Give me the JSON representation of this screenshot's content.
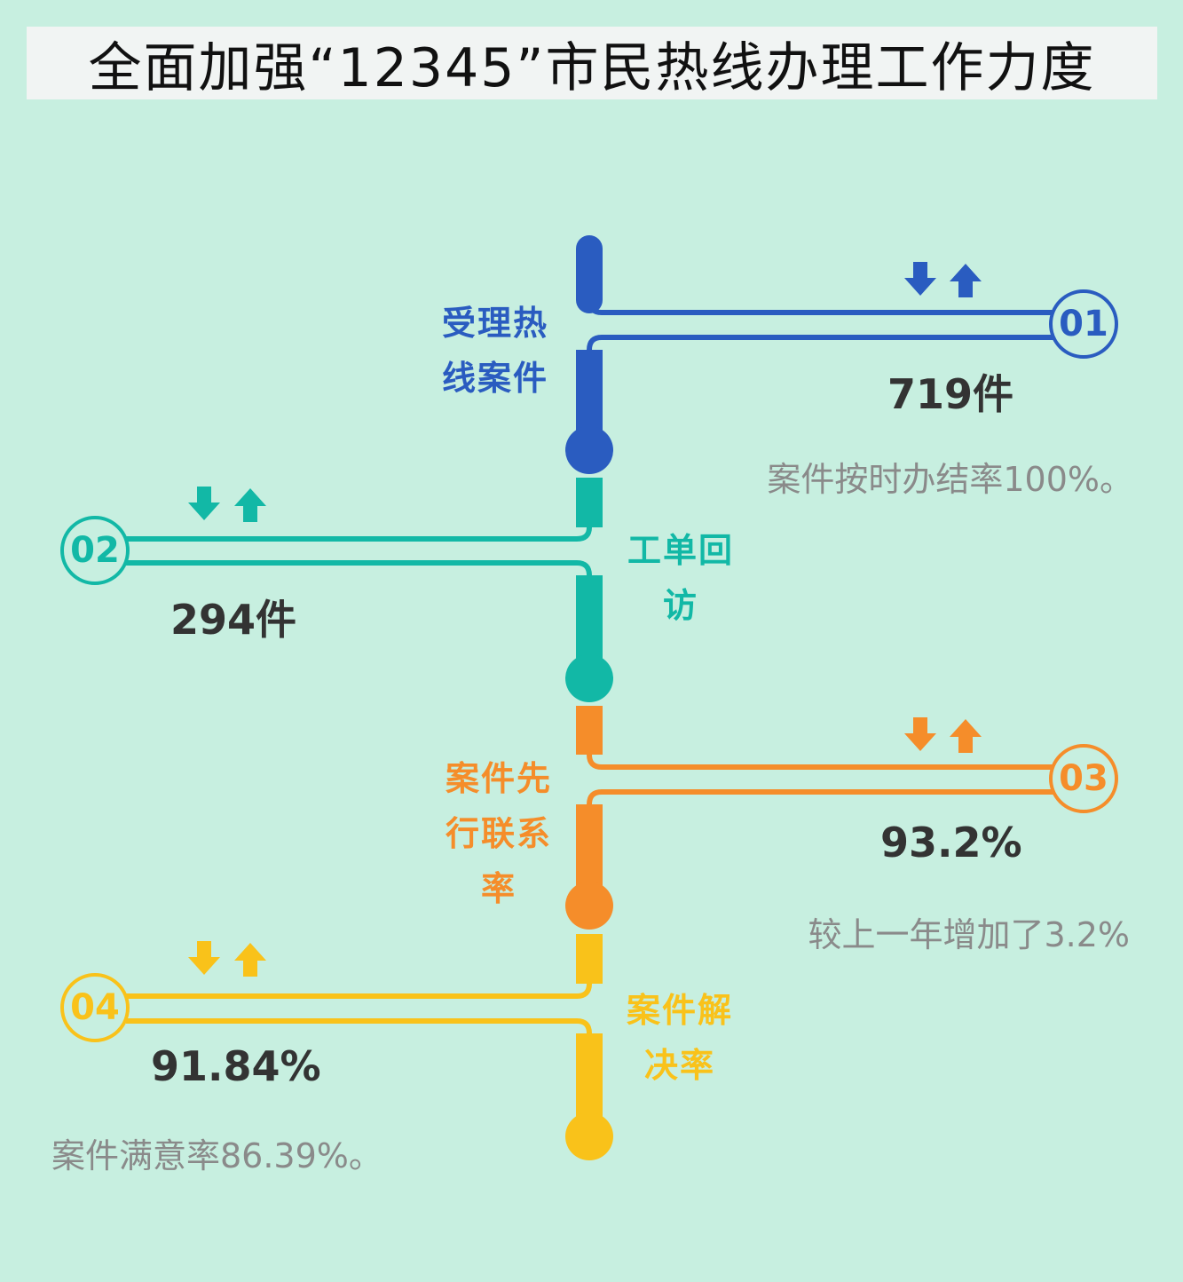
{
  "title": "全面加强“12345”市民热线办理工作力度",
  "colors": {
    "blue": "#2a5cc0",
    "teal": "#12b8a6",
    "orange": "#f58d2a",
    "yellow": "#f9c21a",
    "background": "#c7efe0",
    "value_text": "#333333",
    "note_text": "#8a8a8a"
  },
  "items": [
    {
      "number": "01",
      "label_lines": [
        "受理热",
        "线案件"
      ],
      "value": "719件",
      "note": "案件按时办结率100%。",
      "color": "#2a5cc0"
    },
    {
      "number": "02",
      "label_lines": [
        "工单回",
        "访"
      ],
      "value": "294件",
      "note": "",
      "color": "#12b8a6"
    },
    {
      "number": "03",
      "label_lines": [
        "案件先",
        "行联系",
        "率"
      ],
      "value": "93.2%",
      "note": "较上一年增加了3.2%",
      "color": "#f58d2a"
    },
    {
      "number": "04",
      "label_lines": [
        "案件解",
        "决率"
      ],
      "value": "91.84%",
      "note": "案件满意率86.39%。",
      "color": "#f9c21a"
    }
  ],
  "icons": [
    "arrow-down-icon",
    "arrow-up-icon"
  ]
}
